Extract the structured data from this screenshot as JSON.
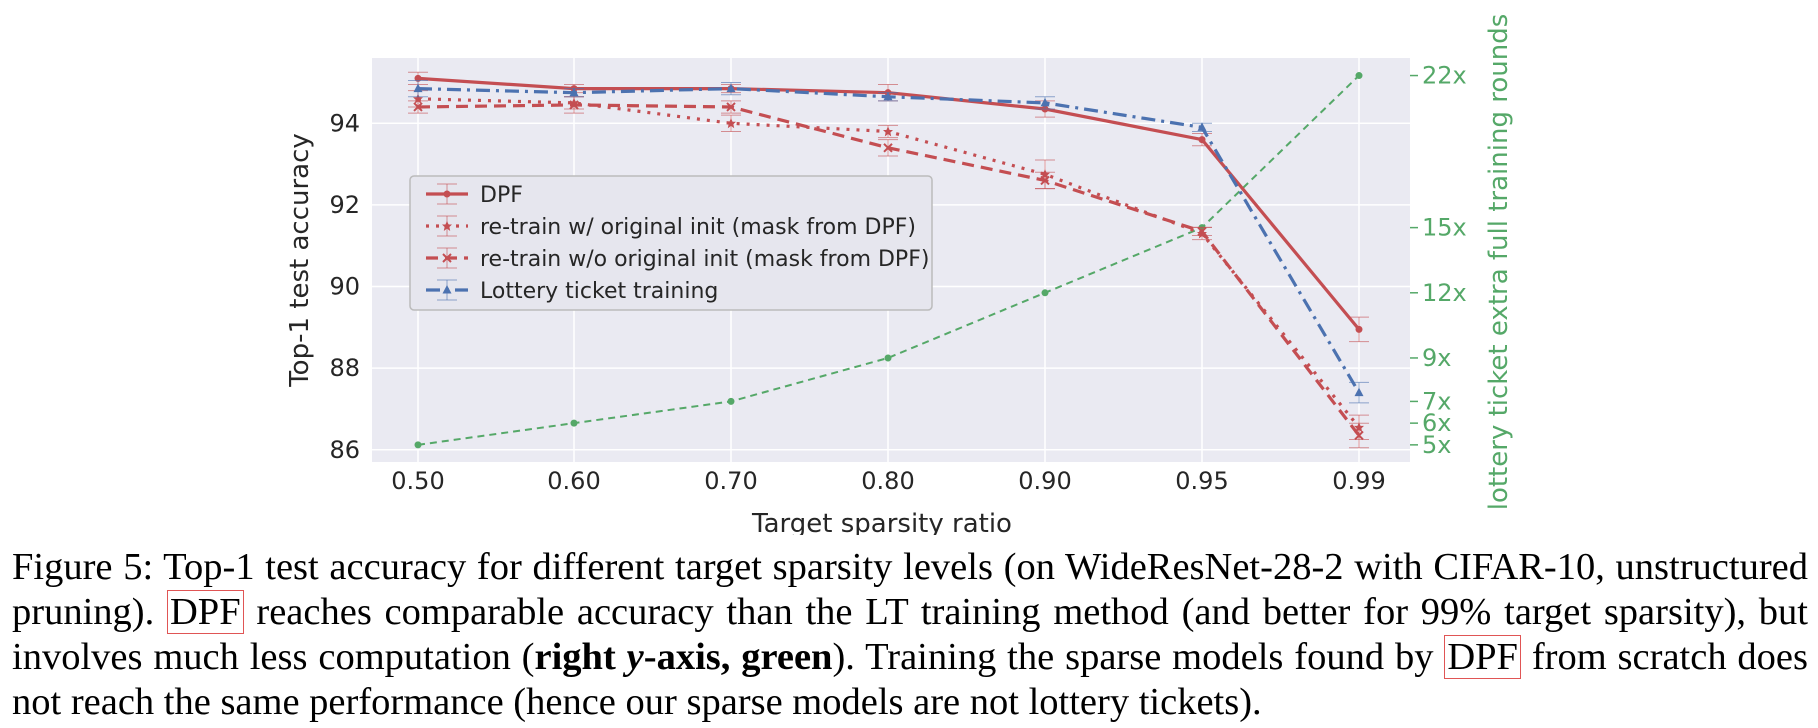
{
  "chart_data": {
    "type": "line",
    "xlabel": "Target sparsity ratio",
    "ylabel": "Top-1 test accuracy",
    "y2label": "lottery ticket extra full training rounds",
    "categories": [
      "0.50",
      "0.60",
      "0.70",
      "0.80",
      "0.90",
      "0.95",
      "0.99"
    ],
    "ylim": [
      85.7,
      95.6
    ],
    "yticks": [
      "86",
      "88",
      "90",
      "92",
      "94"
    ],
    "y2ticks": [
      "5x",
      "6x",
      "7x",
      "9x",
      "12x",
      "15x",
      "22x"
    ],
    "y2tick_values": [
      5,
      6,
      7,
      9,
      12,
      15,
      22
    ],
    "y2_range_on_left_axis": [
      86.12,
      95.17
    ],
    "grid": true,
    "legend_position": "center-left",
    "series": [
      {
        "name": "DPF",
        "values": [
          95.1,
          94.85,
          94.85,
          94.75,
          94.35,
          93.6,
          88.95
        ],
        "errors": [
          0.15,
          0.1,
          0.1,
          0.2,
          0.2,
          0.15,
          0.3
        ],
        "color": "#c44e52",
        "style": "solid",
        "marker": "circle"
      },
      {
        "name": "re-train w/ original init (mask from DPF)",
        "values": [
          94.6,
          94.5,
          94.0,
          93.8,
          92.75,
          91.3,
          86.55
        ],
        "errors": [
          0.2,
          0.15,
          0.2,
          0.15,
          0.35,
          0.15,
          0.3
        ],
        "color": "#c44e52",
        "style": "dotted",
        "marker": "star"
      },
      {
        "name": "re-train w/o original init (mask from DPF)",
        "values": [
          94.4,
          94.45,
          94.4,
          93.4,
          92.6,
          91.35,
          86.35
        ],
        "errors": [
          0.15,
          0.2,
          0.15,
          0.2,
          0.2,
          0.1,
          0.3
        ],
        "color": "#c44e52",
        "style": "dashed",
        "marker": "x"
      },
      {
        "name": "Lottery ticket training",
        "values": [
          94.85,
          94.75,
          94.85,
          94.65,
          94.5,
          93.9,
          87.4
        ],
        "errors": [
          0.2,
          0.1,
          0.15,
          0.1,
          0.15,
          0.1,
          0.25
        ],
        "color": "#4c72b0",
        "style": "dashdot",
        "marker": "triangle"
      }
    ],
    "right_series": {
      "values": [
        5,
        6,
        7,
        9,
        12,
        15,
        22
      ],
      "color": "#55a868",
      "style": "dashed",
      "marker": "dot"
    }
  },
  "caption": {
    "part1": "Figure 5: Top-1 test accuracy for different target sparsity levels (on WideResNet-28-2 with CIFAR-10, unstructured pruning).",
    "dpf1": "DPF",
    "part2": "reaches comparable accuracy than the LT training method (and better for 99% target sparsity), but involves much less computation (",
    "bold_right": "right ",
    "ital_y": "y",
    "bold_rest": "-axis, green",
    "part3": "). Training the sparse models found by",
    "dpf2": "DPF",
    "part4": "from scratch does not reach the same performance (hence our sparse models are not lottery tickets)."
  }
}
